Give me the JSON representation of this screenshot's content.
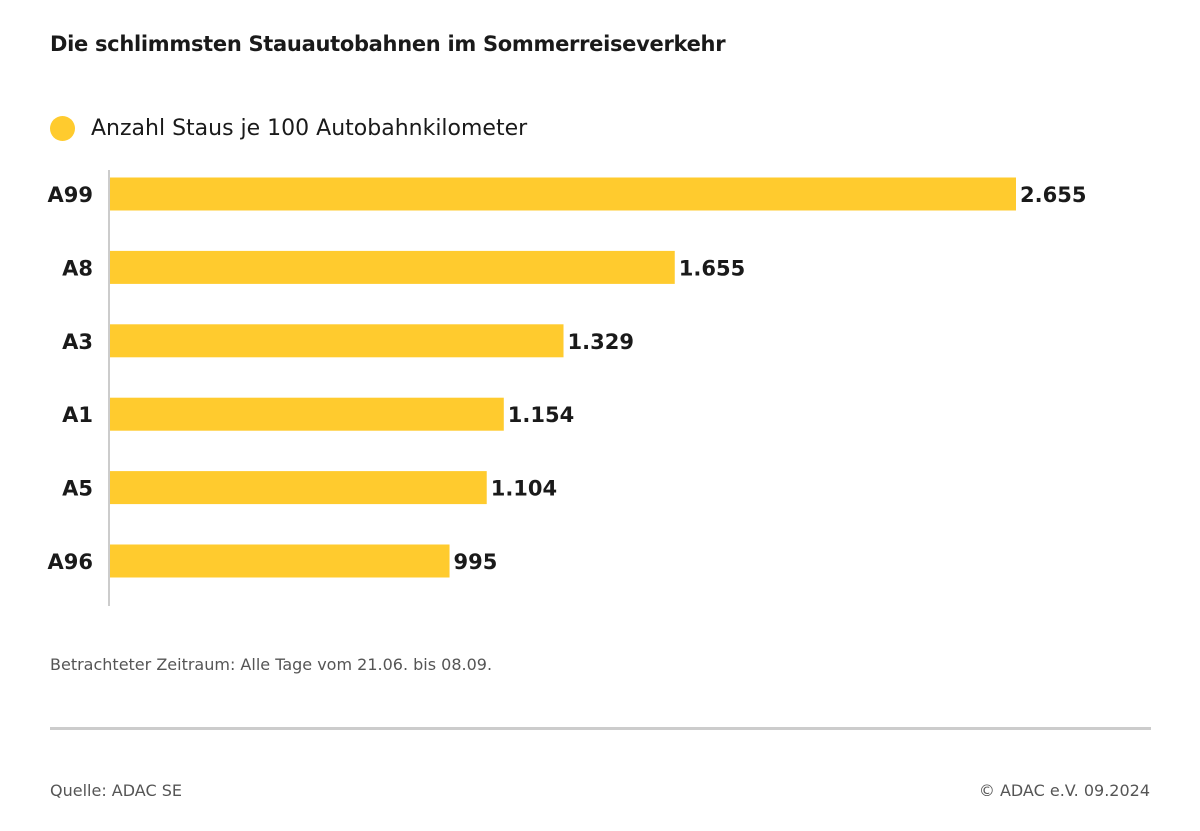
{
  "colors": {
    "bar": "#FFCB2E",
    "axis": "#CCCCCC"
  },
  "chart_data": {
    "type": "bar",
    "orientation": "horizontal",
    "title": "Die schlimmsten Stauautobahnen im Sommerreiseverkehr",
    "legend": [
      "Anzahl Staus je 100 Autobahnkilometer"
    ],
    "categories": [
      "A99",
      "A8",
      "A3",
      "A1",
      "A5",
      "A96"
    ],
    "values": [
      2655,
      1655,
      1329,
      1154,
      1104,
      995
    ],
    "value_labels": [
      "2.655",
      "1.655",
      "1.329",
      "1.154",
      "1.104",
      "995"
    ],
    "xlim": [
      0,
      2655
    ],
    "grid": false
  },
  "footer": {
    "note": "Betrachteter Zeitraum: Alle Tage vom 21.06. bis 08.09.",
    "source": "Quelle: ADAC SE",
    "copyright": "© ADAC e.V. 09.2024"
  }
}
